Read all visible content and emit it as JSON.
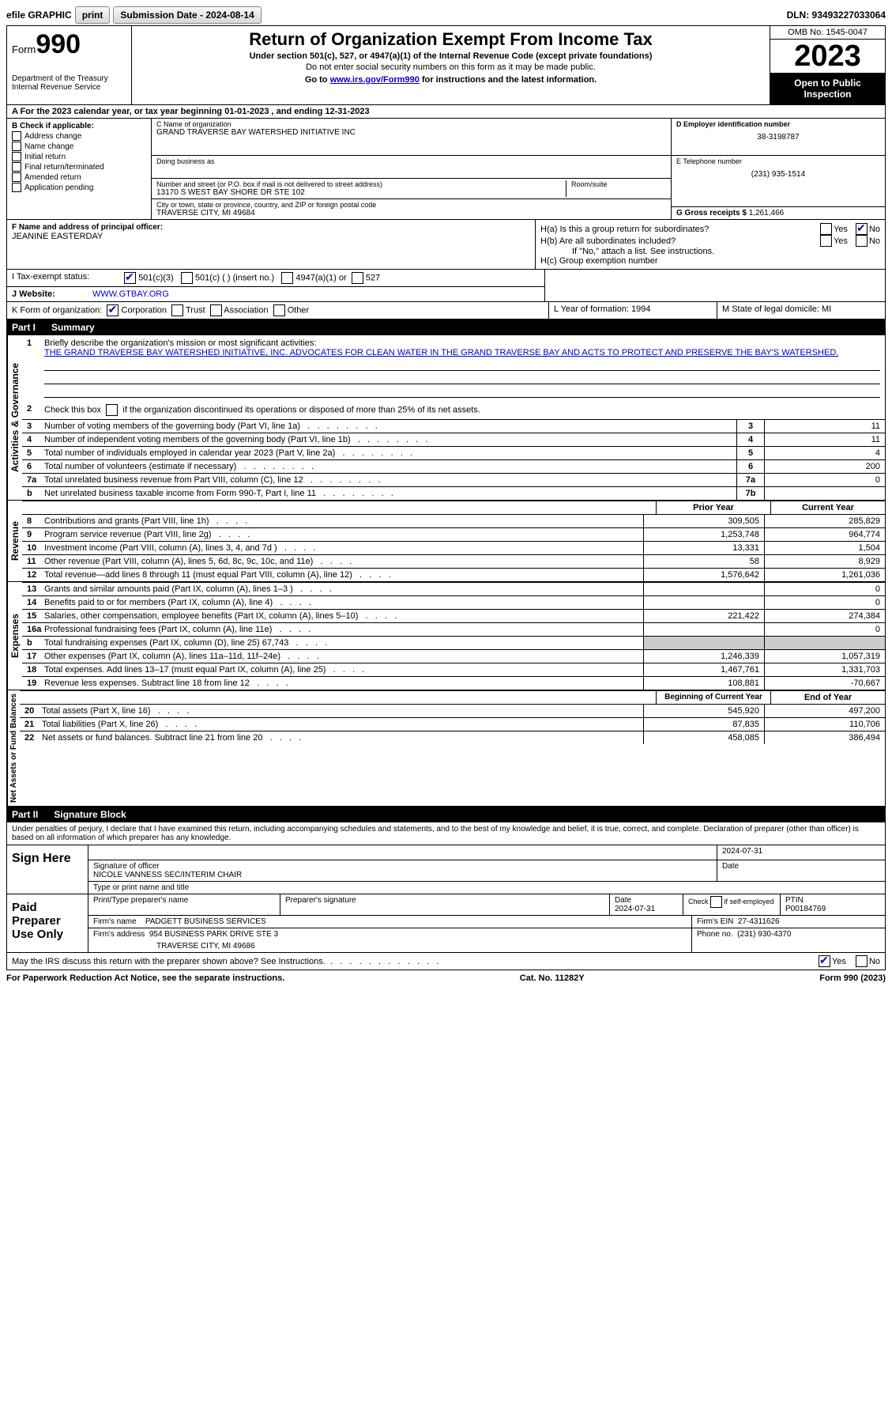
{
  "topbar": {
    "efile": "efile GRAPHIC",
    "print": "print",
    "sub_label": "Submission Date - 2024-08-14",
    "dln": "DLN: 93493227033064"
  },
  "header": {
    "form": "Form",
    "form_no": "990",
    "dept": "Department of the Treasury Internal Revenue Service",
    "title": "Return of Organization Exempt From Income Tax",
    "sub": "Under section 501(c), 527, or 4947(a)(1) of the Internal Revenue Code (except private foundations)",
    "note": "Do not enter social security numbers on this form as it may be made public.",
    "goto_pre": "Go to ",
    "goto_link": "www.irs.gov/Form990",
    "goto_post": " for instructions and the latest information.",
    "omb": "OMB No. 1545-0047",
    "year": "2023",
    "inspect": "Open to Public Inspection"
  },
  "rowA": {
    "text_pre": "A For the 2023 calendar year, or tax year beginning ",
    "d1": "01-01-2023",
    "mid": "   , and ending ",
    "d2": "12-31-2023"
  },
  "colB": {
    "title": "B Check if applicable:",
    "opts": [
      "Address change",
      "Name change",
      "Initial return",
      "Final return/terminated",
      "Amended return",
      "Application pending"
    ]
  },
  "colC": {
    "name_lbl": "C Name of organization",
    "name": "GRAND TRAVERSE BAY WATERSHED INITIATIVE INC",
    "dba_lbl": "Doing business as",
    "dba": "",
    "addr_lbl": "Number and street (or P.O. box if mail is not delivered to street address)",
    "addr": "13170 S WEST BAY SHORE DR STE 102",
    "room_lbl": "Room/suite",
    "city_lbl": "City or town, state or province, country, and ZIP or foreign postal code",
    "city": "TRAVERSE CITY, MI  49684"
  },
  "colD": {
    "ein_lbl": "D Employer identification number",
    "ein": "38-3198787",
    "tel_lbl": "E Telephone number",
    "tel": "(231) 935-1514",
    "gross_lbl": "G Gross receipts $",
    "gross": "1,261,466"
  },
  "rowF": {
    "lbl": "F  Name and address of principal officer:",
    "val": "JEANINE EASTERDAY"
  },
  "rowH": {
    "ha": "H(a)  Is this a group return for subordinates?",
    "hb": "H(b)  Are all subordinates included?",
    "hb_note": "If \"No,\" attach a list. See instructions.",
    "hc": "H(c)  Group exemption number",
    "yes": "Yes",
    "no": "No"
  },
  "rowI": {
    "lbl": "I   Tax-exempt status:",
    "o1": "501(c)(3)",
    "o2": "501(c) (   ) (insert no.)",
    "o3": "4947(a)(1) or",
    "o4": "527"
  },
  "rowJ": {
    "lbl": "J   Website:",
    "val": "WWW.GTBAY.ORG"
  },
  "rowK": {
    "lbl": "K Form of organization:",
    "opts": [
      "Corporation",
      "Trust",
      "Association",
      "Other"
    ],
    "L": "L Year of formation: 1994",
    "M": "M State of legal domicile: MI"
  },
  "part1": {
    "title": "Part I",
    "name": "Summary",
    "side1": "Activities & Governance",
    "side2": "Revenue",
    "side3": "Expenses",
    "side4": "Net Assets or Fund Balances",
    "q1_lbl": "Briefly describe the organization's mission or most significant activities:",
    "q1_val": "THE GRAND TRAVERSE BAY WATERSHED INITIATIVE, INC. ADVOCATES FOR CLEAN WATER IN THE GRAND TRAVERSE BAY AND ACTS TO PROTECT AND PRESERVE THE BAY'S WATERSHED.",
    "q2": "Check this box        if the organization discontinued its operations or disposed of more than 25% of its net assets.",
    "rows_a": [
      {
        "n": "3",
        "t": "Number of voting members of the governing body (Part VI, line 1a)",
        "b": "3",
        "v": "11"
      },
      {
        "n": "4",
        "t": "Number of independent voting members of the governing body (Part VI, line 1b)",
        "b": "4",
        "v": "11"
      },
      {
        "n": "5",
        "t": "Total number of individuals employed in calendar year 2023 (Part V, line 2a)",
        "b": "5",
        "v": "4"
      },
      {
        "n": "6",
        "t": "Total number of volunteers (estimate if necessary)",
        "b": "6",
        "v": "200"
      },
      {
        "n": "7a",
        "t": "Total unrelated business revenue from Part VIII, column (C), line 12",
        "b": "7a",
        "v": "0"
      },
      {
        "n": "b",
        "t": "Net unrelated business taxable income from Form 990-T, Part I, line 11",
        "b": "7b",
        "v": ""
      }
    ],
    "hdr_prior": "Prior Year",
    "hdr_curr": "Current Year",
    "rows_rev": [
      {
        "n": "8",
        "t": "Contributions and grants (Part VIII, line 1h)",
        "p": "309,505",
        "c": "285,829"
      },
      {
        "n": "9",
        "t": "Program service revenue (Part VIII, line 2g)",
        "p": "1,253,748",
        "c": "964,774"
      },
      {
        "n": "10",
        "t": "Investment income (Part VIII, column (A), lines 3, 4, and 7d )",
        "p": "13,331",
        "c": "1,504"
      },
      {
        "n": "11",
        "t": "Other revenue (Part VIII, column (A), lines 5, 6d, 8c, 9c, 10c, and 11e)",
        "p": "58",
        "c": "8,929"
      },
      {
        "n": "12",
        "t": "Total revenue—add lines 8 through 11 (must equal Part VIII, column (A), line 12)",
        "p": "1,576,642",
        "c": "1,261,036"
      }
    ],
    "rows_exp": [
      {
        "n": "13",
        "t": "Grants and similar amounts paid (Part IX, column (A), lines 1–3 )",
        "p": "",
        "c": "0"
      },
      {
        "n": "14",
        "t": "Benefits paid to or for members (Part IX, column (A), line 4)",
        "p": "",
        "c": "0"
      },
      {
        "n": "15",
        "t": "Salaries, other compensation, employee benefits (Part IX, column (A), lines 5–10)",
        "p": "221,422",
        "c": "274,384"
      },
      {
        "n": "16a",
        "t": "Professional fundraising fees (Part IX, column (A), line 11e)",
        "p": "",
        "c": "0"
      },
      {
        "n": "b",
        "t": "Total fundraising expenses (Part IX, column (D), line 25) 67,743",
        "p": "grey",
        "c": "grey"
      },
      {
        "n": "17",
        "t": "Other expenses (Part IX, column (A), lines 11a–11d, 11f–24e)",
        "p": "1,246,339",
        "c": "1,057,319"
      },
      {
        "n": "18",
        "t": "Total expenses. Add lines 13–17 (must equal Part IX, column (A), line 25)",
        "p": "1,467,761",
        "c": "1,331,703"
      },
      {
        "n": "19",
        "t": "Revenue less expenses. Subtract line 18 from line 12",
        "p": "108,881",
        "c": "-70,667"
      }
    ],
    "hdr_beg": "Beginning of Current Year",
    "hdr_end": "End of Year",
    "rows_net": [
      {
        "n": "20",
        "t": "Total assets (Part X, line 16)",
        "p": "545,920",
        "c": "497,200"
      },
      {
        "n": "21",
        "t": "Total liabilities (Part X, line 26)",
        "p": "87,835",
        "c": "110,706"
      },
      {
        "n": "22",
        "t": "Net assets or fund balances. Subtract line 21 from line 20",
        "p": "458,085",
        "c": "386,494"
      }
    ]
  },
  "part2": {
    "title": "Part II",
    "name": "Signature Block",
    "decl": "Under penalties of perjury, I declare that I have examined this return, including accompanying schedules and statements, and to the best of my knowledge and belief, it is true, correct, and complete. Declaration of preparer (other than officer) is based on all information of which preparer has any knowledge.",
    "sign_here": "Sign Here",
    "sig_lbl": "Signature of officer",
    "date1": "2024-07-31",
    "name_lbl": "Type or print name and title",
    "name_val": "NICOLE VANNESS  SEC/INTERIM CHAIR",
    "paid": "Paid Preparer Use Only",
    "prep_name_lbl": "Print/Type preparer's name",
    "prep_sig_lbl": "Preparer's signature",
    "date_lbl": "Date",
    "date2": "2024-07-31",
    "check_lbl": "Check         if self-employed",
    "ptin_lbl": "PTIN",
    "ptin": "P00184769",
    "firm_name_lbl": "Firm's name",
    "firm_name": "PADGETT BUSINESS SERVICES",
    "firm_ein_lbl": "Firm's EIN",
    "firm_ein": "27-4311626",
    "firm_addr_lbl": "Firm's address",
    "firm_addr1": "954 BUSINESS PARK DRIVE STE 3",
    "firm_addr2": "TRAVERSE CITY, MI  49686",
    "phone_lbl": "Phone no.",
    "phone": "(231) 930-4370",
    "discuss": "May the IRS discuss this return with the preparer shown above? See Instructions."
  },
  "footer": {
    "left": "For Paperwork Reduction Act Notice, see the separate instructions.",
    "mid": "Cat. No. 11282Y",
    "right": "Form 990 (2023)"
  }
}
